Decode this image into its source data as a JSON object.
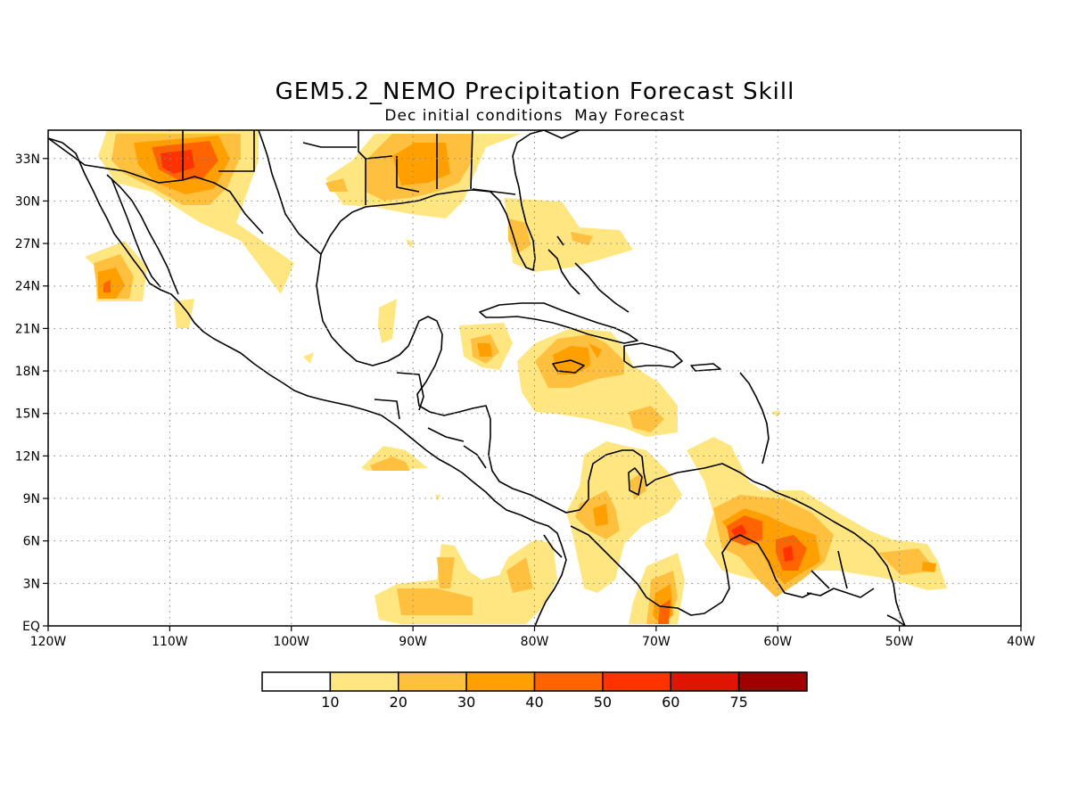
{
  "title": "GEM5.2_NEMO Precipitation Forecast Skill",
  "subtitle": "Dec initial conditions  May Forecast",
  "map": {
    "lon_range": [
      -120,
      -40
    ],
    "lat_range": [
      0,
      35
    ],
    "lon_ticks": [
      {
        "value": -120,
        "label": "120W"
      },
      {
        "value": -110,
        "label": "110W"
      },
      {
        "value": -100,
        "label": "100W"
      },
      {
        "value": -90,
        "label": "90W"
      },
      {
        "value": -80,
        "label": "80W"
      },
      {
        "value": -70,
        "label": "70W"
      },
      {
        "value": -60,
        "label": "60W"
      },
      {
        "value": -50,
        "label": "50W"
      },
      {
        "value": -40,
        "label": "40W"
      }
    ],
    "lat_ticks": [
      {
        "value": 0,
        "label": "EQ"
      },
      {
        "value": 3,
        "label": "3N"
      },
      {
        "value": 6,
        "label": "6N"
      },
      {
        "value": 9,
        "label": "9N"
      },
      {
        "value": 12,
        "label": "12N"
      },
      {
        "value": 15,
        "label": "15N"
      },
      {
        "value": 18,
        "label": "18N"
      },
      {
        "value": 21,
        "label": "21N"
      },
      {
        "value": 24,
        "label": "24N"
      },
      {
        "value": 27,
        "label": "27N"
      },
      {
        "value": 30,
        "label": "30N"
      },
      {
        "value": 33,
        "label": "33N"
      }
    ],
    "grid": true
  },
  "colorbar": {
    "levels": [
      "10",
      "20",
      "30",
      "40",
      "50",
      "60",
      "75"
    ],
    "colors": [
      "#ffffff",
      "#ffe680",
      "#ffc040",
      "#ffa000",
      "#ff6400",
      "#ff3200",
      "#e01400",
      "#a00000"
    ]
  }
}
